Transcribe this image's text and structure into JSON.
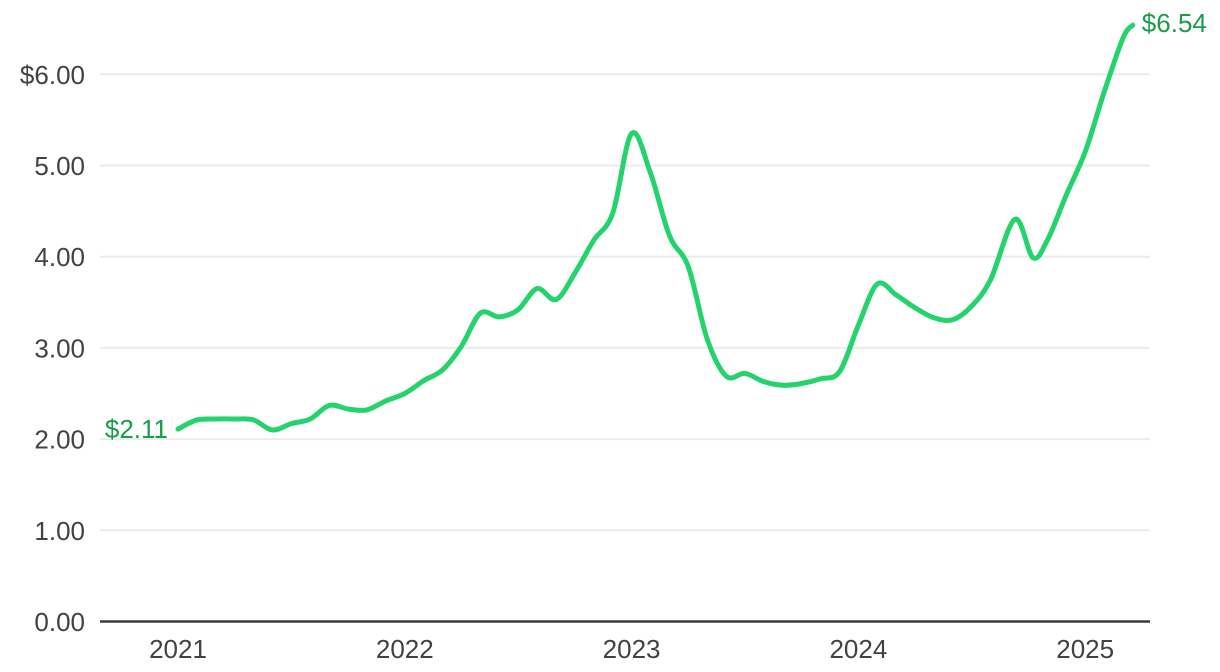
{
  "page": {
    "background": "#ffffff"
  },
  "colors": {
    "line_green": "#24d36b",
    "label_green": "#189e49",
    "axis_text": "#424242",
    "gridline": "#ebebeb",
    "axis_line": "#3b3b3b",
    "background": "#ffffff"
  },
  "chart_data": {
    "type": "line",
    "title": "",
    "xlabel": "",
    "ylabel": "",
    "x_unit": "year",
    "y_unit": "USD",
    "xlim": [
      2020.66,
      2025.29
    ],
    "ylim": [
      0,
      6.83
    ],
    "grid": "horizontal",
    "legend_position": "none",
    "y_ticks": [
      {
        "value": 6,
        "label": "$6.00"
      },
      {
        "value": 5,
        "label": "5.00"
      },
      {
        "value": 4,
        "label": "4.00"
      },
      {
        "value": 3,
        "label": "3.00"
      },
      {
        "value": 2,
        "label": "2.00"
      },
      {
        "value": 1,
        "label": "1.00"
      },
      {
        "value": 0,
        "label": "0.00"
      }
    ],
    "x_ticks": [
      {
        "value": 2021,
        "label": "2021"
      },
      {
        "value": 2022,
        "label": "2022"
      },
      {
        "value": 2023,
        "label": "2023"
      },
      {
        "value": 2024,
        "label": "2024"
      },
      {
        "value": 2025,
        "label": "2025"
      }
    ],
    "series": [
      {
        "name": "price",
        "color": "#24d36b",
        "points": [
          [
            2021.0,
            2.11
          ],
          [
            2021.083,
            2.21
          ],
          [
            2021.167,
            2.22
          ],
          [
            2021.25,
            2.22
          ],
          [
            2021.333,
            2.21
          ],
          [
            2021.417,
            2.1
          ],
          [
            2021.5,
            2.17
          ],
          [
            2021.583,
            2.22
          ],
          [
            2021.667,
            2.37
          ],
          [
            2021.75,
            2.33
          ],
          [
            2021.833,
            2.32
          ],
          [
            2021.917,
            2.42
          ],
          [
            2022.0,
            2.5
          ],
          [
            2022.083,
            2.64
          ],
          [
            2022.167,
            2.76
          ],
          [
            2022.25,
            3.02
          ],
          [
            2022.333,
            3.38
          ],
          [
            2022.417,
            3.34
          ],
          [
            2022.5,
            3.42
          ],
          [
            2022.583,
            3.65
          ],
          [
            2022.667,
            3.53
          ],
          [
            2022.75,
            3.82
          ],
          [
            2022.833,
            4.18
          ],
          [
            2022.917,
            4.48
          ],
          [
            2023.0,
            5.35
          ],
          [
            2023.083,
            4.92
          ],
          [
            2023.167,
            4.23
          ],
          [
            2023.25,
            3.89
          ],
          [
            2023.333,
            3.1
          ],
          [
            2023.417,
            2.69
          ],
          [
            2023.5,
            2.72
          ],
          [
            2023.583,
            2.63
          ],
          [
            2023.667,
            2.59
          ],
          [
            2023.75,
            2.61
          ],
          [
            2023.833,
            2.66
          ],
          [
            2023.917,
            2.74
          ],
          [
            2024.0,
            3.25
          ],
          [
            2024.083,
            3.7
          ],
          [
            2024.167,
            3.58
          ],
          [
            2024.25,
            3.44
          ],
          [
            2024.333,
            3.33
          ],
          [
            2024.417,
            3.31
          ],
          [
            2024.5,
            3.46
          ],
          [
            2024.583,
            3.75
          ],
          [
            2024.69,
            4.41
          ],
          [
            2024.77,
            3.99
          ],
          [
            2024.833,
            4.18
          ],
          [
            2024.917,
            4.68
          ],
          [
            2025.0,
            5.15
          ],
          [
            2025.083,
            5.8
          ],
          [
            2025.167,
            6.4
          ],
          [
            2025.21,
            6.54
          ]
        ]
      }
    ],
    "annotations": {
      "start": {
        "text": "$2.11",
        "x": 2021.0,
        "value": 2.11
      },
      "end": {
        "text": "$6.54",
        "x": 2025.21,
        "value": 6.54
      }
    }
  }
}
